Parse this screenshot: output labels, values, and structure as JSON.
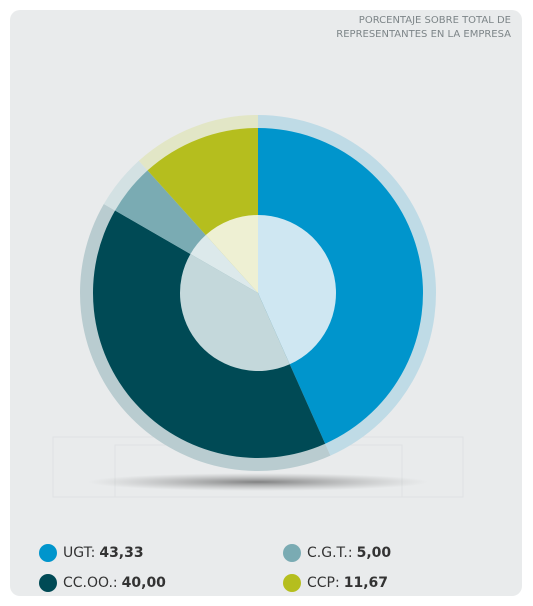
{
  "chart_data": {
    "type": "pie",
    "title": "PORCENTAJE SOBRE TOTAL DE REPRESENTANTES EN LA EMPRESA",
    "categories": [
      "UGT:",
      "CC.OO.:",
      "C.G.T.:",
      "CCP:"
    ],
    "values": [
      43.33,
      40.0,
      5.0,
      11.67
    ],
    "value_labels": [
      "43,33",
      "40,00",
      "5,00",
      "11,67"
    ],
    "colors": [
      "#0095cc",
      "#004a55",
      "#7aabb3",
      "#b5be1e"
    ],
    "outer_colors": [
      "#bfdbe6",
      "#b9ccd0",
      "#d3e1e3",
      "#e2e6c6"
    ],
    "inner_colors": [
      "#cfe7f2",
      "#c4d8db",
      "#dce9eb",
      "#eef0d3"
    ]
  }
}
